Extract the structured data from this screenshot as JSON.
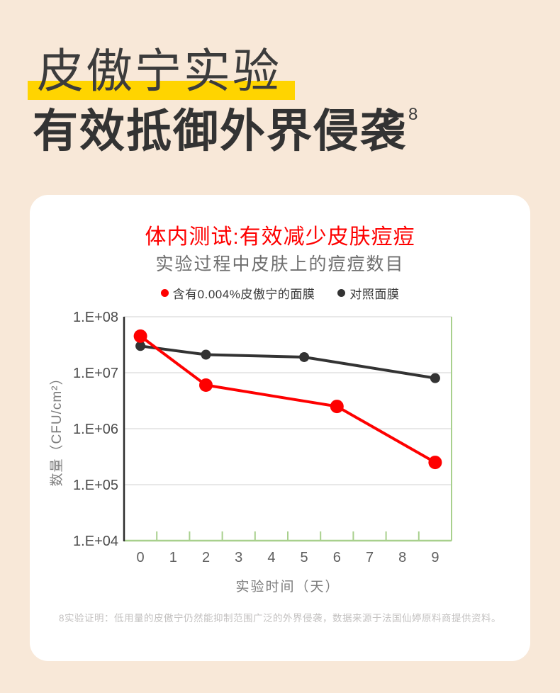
{
  "page": {
    "background_color": "#f8e8d8"
  },
  "header": {
    "title_line1": "皮傲宁实验",
    "title_line2": "有效抵御外界侵袭",
    "title_superscript": "8",
    "highlight_color": "#ffd400"
  },
  "card": {
    "title": "体内测试:有效减少皮肤痘痘",
    "subtitle": "实验过程中皮肤上的痘痘数目",
    "legend": [
      {
        "label": "含有0.004%皮傲宁的面膜",
        "color": "#fe0000"
      },
      {
        "label": "对照面膜",
        "color": "#333333"
      }
    ],
    "footnote": "8实验证明：低用量的皮傲宁仍然能抑制范围广泛的外界侵袭，数据来源于法国仙婷原料商提供资料。"
  },
  "chart_data": {
    "type": "line",
    "title": "体内测试:有效减少皮肤痘痘",
    "subtitle": "实验过程中皮肤上的痘痘数目",
    "xlabel": "实验时间（天）",
    "ylabel": "数量（CFU/cm²）",
    "x_categories": [
      "0",
      "1",
      "2",
      "3",
      "4",
      "5",
      "6",
      "7",
      "8",
      "9"
    ],
    "y_scale": "log",
    "y_min": 10000,
    "y_max": 100000000,
    "y_ticks": [
      {
        "label": "1.E+08",
        "value": 100000000
      },
      {
        "label": "1.E+07",
        "value": 10000000
      },
      {
        "label": "1.E+06",
        "value": 1000000
      },
      {
        "label": "1.E+05",
        "value": 100000
      },
      {
        "label": "1.E+04",
        "value": 10000
      }
    ],
    "grid": true,
    "legend_position": "top",
    "series": [
      {
        "name": "含有0.004%皮傲宁的面膜",
        "color": "#fe0000",
        "marker_radius": 9.5,
        "line_width": 4,
        "points": [
          {
            "x": 0,
            "y": 45000000
          },
          {
            "x": 2,
            "y": 6000000
          },
          {
            "x": 6,
            "y": 2500000
          },
          {
            "x": 9,
            "y": 250000
          }
        ]
      },
      {
        "name": "对照面膜",
        "color": "#333333",
        "marker_radius": 7,
        "line_width": 4,
        "points": [
          {
            "x": 0,
            "y": 30000000
          },
          {
            "x": 2,
            "y": 21000000
          },
          {
            "x": 5,
            "y": 19000000
          },
          {
            "x": 9,
            "y": 8000000
          }
        ]
      }
    ],
    "colors": {
      "grid": "#dadada",
      "x_axis": "#a8d08d",
      "y_axis": "#2e2e2e",
      "tick_label": "#4d4d4d",
      "x_tick_label": "#5f5f5f",
      "axis_title": "#7d7d7d"
    }
  }
}
